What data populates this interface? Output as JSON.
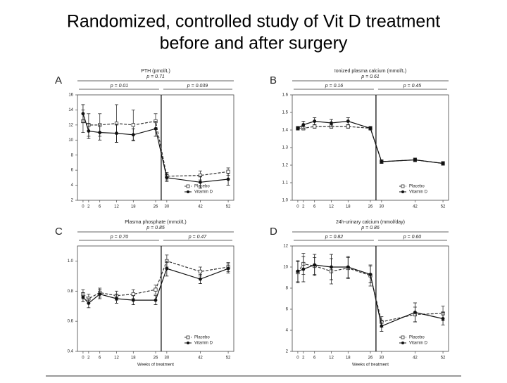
{
  "title": [
    "Randomized, controlled study of Vit D treatment",
    "before and after surgery"
  ],
  "chart_data": [
    {
      "type": "line",
      "label": "A",
      "title": "PTH (pmol/L)",
      "annotations": [
        "p = 0.71",
        "p = 0.01",
        "p = 0.039"
      ],
      "x": [
        0,
        2,
        6,
        12,
        18,
        26,
        30,
        42,
        52
      ],
      "xlim": [
        -2,
        54
      ],
      "xticks": [
        0,
        2,
        6,
        12,
        18,
        26,
        30,
        42,
        52
      ],
      "ylim": [
        2,
        16
      ],
      "yticks": [
        2,
        4,
        6,
        8,
        10,
        12,
        14,
        16
      ],
      "legend": "lower right",
      "series": [
        {
          "name": "Placebo",
          "color": "#333333",
          "line_style": "dashed",
          "marker": "open-square",
          "values": [
            12.5,
            12,
            12,
            12.2,
            12,
            12.5,
            5.2,
            5.3,
            5.8
          ],
          "error": [
            1.5,
            1.5,
            1.5,
            2.5,
            2,
            1,
            0.5,
            0.6,
            0.5
          ]
        },
        {
          "name": "Vitamin D",
          "color": "#111111",
          "line_style": "solid",
          "marker": "filled-circle",
          "values": [
            13.5,
            11.2,
            11,
            10.9,
            10.7,
            11.5,
            5,
            4.4,
            4.8
          ],
          "error": [
            1.2,
            1,
            1,
            1.2,
            0.8,
            1,
            0.5,
            0.8,
            0.8
          ]
        }
      ]
    },
    {
      "type": "line",
      "label": "B",
      "title": "Ionized plasma calcium (mmol/L)",
      "annotations": [
        "p = 0.61",
        "p = 0.16",
        "p = 0.45"
      ],
      "x": [
        0,
        2,
        6,
        12,
        18,
        26,
        30,
        42,
        52
      ],
      "xlim": [
        -2,
        54
      ],
      "xticks": [
        0,
        2,
        6,
        12,
        18,
        26,
        30,
        42,
        52
      ],
      "ylim": [
        1,
        1.6
      ],
      "yticks": [
        {
          "value": 1,
          "label": "1.0"
        },
        1.1,
        1.2,
        1.3,
        1.4,
        1.5,
        1.6
      ],
      "legend": "lower right",
      "series": [
        {
          "name": "Placebo",
          "color": "#333333",
          "line_style": "dashed",
          "marker": "open-square",
          "values": [
            1.41,
            1.41,
            1.42,
            1.42,
            1.42,
            1.41,
            1.22,
            1.23,
            1.21
          ],
          "error": [
            0.01,
            0.01,
            0.01,
            0.01,
            0.01,
            0.01,
            0.01,
            0.01,
            0.01
          ]
        },
        {
          "name": "Vitamin D",
          "color": "#111111",
          "line_style": "solid",
          "marker": "filled-circle",
          "values": [
            1.41,
            1.43,
            1.45,
            1.44,
            1.45,
            1.41,
            1.22,
            1.23,
            1.21
          ],
          "error": [
            0.01,
            0.02,
            0.02,
            0.02,
            0.02,
            0.01,
            0.01,
            0.01,
            0.01
          ]
        }
      ]
    },
    {
      "type": "line",
      "label": "C",
      "title": "Plasma phosphate (mmol/L)",
      "annotations": [
        "p = 0.85",
        "p = 0.70",
        "p = 0.47"
      ],
      "xlabel": "Weeks of treatment",
      "x": [
        0,
        2,
        6,
        12,
        18,
        26,
        30,
        42,
        52
      ],
      "xlim": [
        -2,
        54
      ],
      "xticks": [
        0,
        2,
        6,
        12,
        18,
        26,
        30,
        42,
        52
      ],
      "ylim": [
        0.4,
        1.1
      ],
      "yticks": [
        0.4,
        0.6,
        0.8,
        {
          "value": 1,
          "label": "1.0"
        }
      ],
      "legend": "lower right",
      "series": [
        {
          "name": "Placebo",
          "color": "#333333",
          "line_style": "dashed",
          "marker": "open-square",
          "values": [
            0.78,
            0.75,
            0.79,
            0.77,
            0.78,
            0.81,
            1.0,
            0.93,
            0.96
          ],
          "error": [
            0.03,
            0.03,
            0.03,
            0.03,
            0.03,
            0.03,
            0.04,
            0.03,
            0.03
          ]
        },
        {
          "name": "Vitamin D",
          "color": "#111111",
          "line_style": "solid",
          "marker": "filled-circle",
          "values": [
            0.76,
            0.72,
            0.78,
            0.75,
            0.74,
            0.74,
            0.95,
            0.88,
            0.95
          ],
          "error": [
            0.03,
            0.03,
            0.03,
            0.03,
            0.03,
            0.03,
            0.05,
            0.03,
            0.03
          ]
        }
      ]
    },
    {
      "type": "line",
      "label": "D",
      "title": "24h-urinary calcium (mmol/day)",
      "annotations": [
        "p = 0.86",
        "p = 0.82",
        "p = 0.60"
      ],
      "xlabel": "Weeks of treatment",
      "x": [
        0,
        2,
        6,
        12,
        18,
        26,
        30,
        42,
        52
      ],
      "xlim": [
        -2,
        54
      ],
      "xticks": [
        0,
        2,
        6,
        12,
        18,
        26,
        30,
        42,
        52
      ],
      "ylim": [
        2,
        12
      ],
      "yticks": [
        2,
        4,
        6,
        8,
        10,
        12
      ],
      "legend": "lower right",
      "series": [
        {
          "name": "Placebo",
          "color": "#333333",
          "line_style": "dashed",
          "marker": "open-square",
          "values": [
            9.5,
            10.3,
            10.1,
            9.6,
            9.9,
            9.2,
            4.8,
            5.5,
            5.6
          ],
          "error": [
            1,
            1,
            0.8,
            1.2,
            1,
            1,
            0.5,
            0.7,
            0.7
          ]
        },
        {
          "name": "Vitamin D",
          "color": "#111111",
          "line_style": "solid",
          "marker": "filled-circle",
          "values": [
            9.6,
            9.8,
            10.2,
            10,
            10,
            9.3,
            4.4,
            5.7,
            5.1
          ],
          "error": [
            1,
            1.2,
            1,
            1.2,
            1,
            0.8,
            0.5,
            0.9,
            0.6
          ]
        }
      ]
    }
  ]
}
